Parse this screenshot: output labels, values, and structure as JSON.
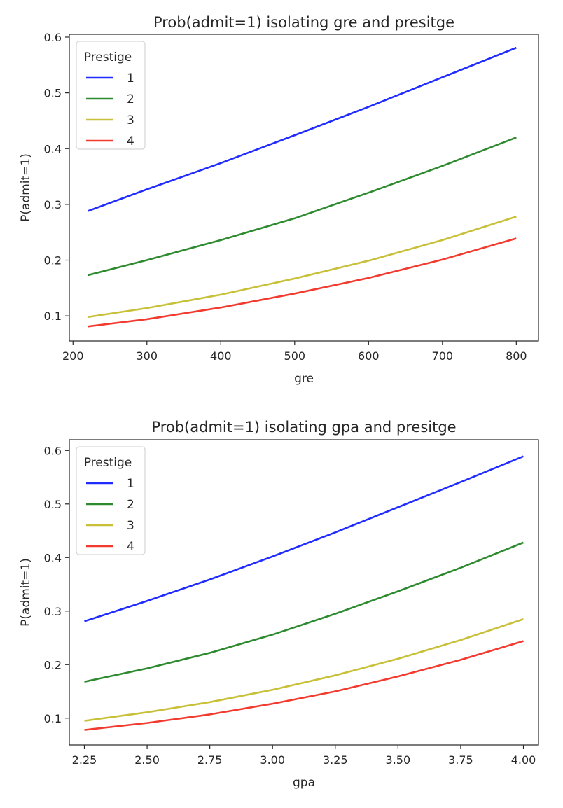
{
  "chart_data": [
    {
      "type": "line",
      "title": "Prob(admit=1) isolating gre and presitge",
      "xlabel": "gre",
      "ylabel": "P(admit=1)",
      "xlim": [
        195,
        830
      ],
      "ylim": [
        0.055,
        0.605
      ],
      "xticks": [
        200,
        300,
        400,
        500,
        600,
        700,
        800
      ],
      "xtick_labels": [
        "200",
        "300",
        "400",
        "500",
        "600",
        "700",
        "800"
      ],
      "yticks": [
        0.1,
        0.2,
        0.3,
        0.4,
        0.5,
        0.6
      ],
      "ytick_labels": [
        "0.1",
        "0.2",
        "0.3",
        "0.4",
        "0.5",
        "0.6"
      ],
      "grid": false,
      "legend": {
        "title": "Prestige",
        "position": "top-left"
      },
      "x": [
        220,
        300,
        400,
        500,
        600,
        700,
        800
      ],
      "series": [
        {
          "name": "1",
          "color": "#1f2bff",
          "values": [
            0.288,
            0.327,
            0.374,
            0.424,
            0.475,
            0.528,
            0.581
          ]
        },
        {
          "name": "2",
          "color": "#2e8a2e",
          "values": [
            0.173,
            0.2,
            0.236,
            0.275,
            0.321,
            0.369,
            0.42
          ]
        },
        {
          "name": "3",
          "color": "#c8c038",
          "values": [
            0.098,
            0.114,
            0.138,
            0.167,
            0.199,
            0.236,
            0.278
          ]
        },
        {
          "name": "4",
          "color": "#f23a2e",
          "values": [
            0.081,
            0.094,
            0.115,
            0.14,
            0.168,
            0.201,
            0.239
          ]
        }
      ]
    },
    {
      "type": "line",
      "title": "Prob(admit=1) isolating gpa and presitge",
      "xlabel": "gpa",
      "ylabel": "P(admit=1)",
      "xlim": [
        2.19,
        4.06
      ],
      "ylim": [
        0.05,
        0.62
      ],
      "xticks": [
        2.25,
        2.5,
        2.75,
        3.0,
        3.25,
        3.5,
        3.75,
        4.0
      ],
      "xtick_labels": [
        "2.25",
        "2.50",
        "2.75",
        "3.00",
        "3.25",
        "3.50",
        "3.75",
        "4.00"
      ],
      "yticks": [
        0.1,
        0.2,
        0.3,
        0.4,
        0.5,
        0.6
      ],
      "ytick_labels": [
        "0.1",
        "0.2",
        "0.3",
        "0.4",
        "0.5",
        "0.6"
      ],
      "grid": false,
      "legend": {
        "title": "Prestige",
        "position": "top-left"
      },
      "x": [
        2.25,
        2.5,
        2.75,
        3.0,
        3.25,
        3.5,
        3.75,
        4.0
      ],
      "series": [
        {
          "name": "1",
          "color": "#1f2bff",
          "values": [
            0.281,
            0.319,
            0.359,
            0.402,
            0.447,
            0.494,
            0.541,
            0.589
          ]
        },
        {
          "name": "2",
          "color": "#2e8a2e",
          "values": [
            0.168,
            0.193,
            0.222,
            0.256,
            0.295,
            0.337,
            0.381,
            0.428
          ]
        },
        {
          "name": "3",
          "color": "#c8c038",
          "values": [
            0.095,
            0.111,
            0.13,
            0.153,
            0.18,
            0.211,
            0.246,
            0.285
          ]
        },
        {
          "name": "4",
          "color": "#f23a2e",
          "values": [
            0.078,
            0.091,
            0.107,
            0.127,
            0.15,
            0.178,
            0.209,
            0.244
          ]
        }
      ]
    }
  ]
}
